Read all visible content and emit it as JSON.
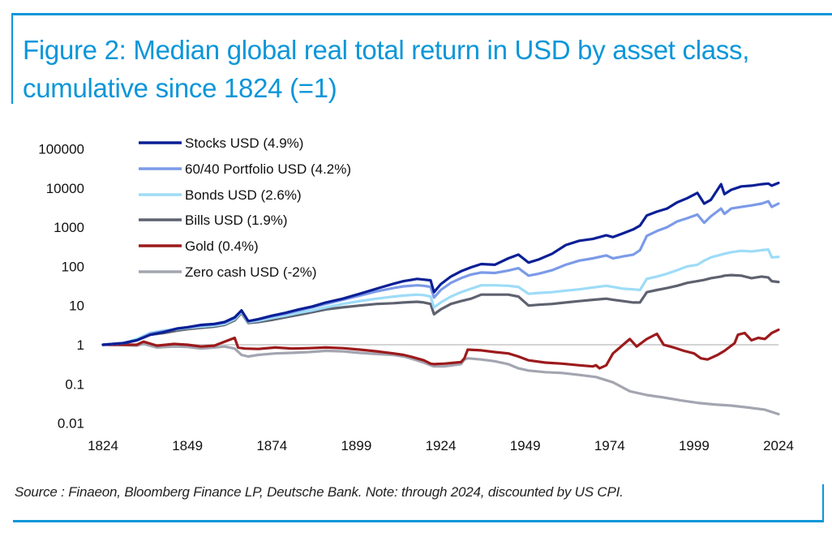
{
  "figure": {
    "title": "Figure 2: Median global real total return in USD by asset class, cumulative since 1824 (=1)",
    "source": "Source : Finaeon, Bloomberg Finance LP, Deutsche Bank. Note: through 2024, discounted by US CPI.",
    "accent_color": "#0b96d9"
  },
  "chart_data": {
    "type": "line",
    "title": "Figure 2: Median global real total return in USD by asset class, cumulative since 1824 (=1)",
    "xlabel": "",
    "ylabel": "",
    "yscale": "log",
    "xlim": [
      1824,
      2024
    ],
    "ylim": [
      0.01,
      100000
    ],
    "x_ticks": [
      "1824",
      "1849",
      "1874",
      "1899",
      "1924",
      "1949",
      "1974",
      "1999",
      "2024"
    ],
    "y_ticks": [
      "100000",
      "10000",
      "1000",
      "100",
      "10",
      "1",
      "0.1",
      "0.01"
    ],
    "y_tick_values": [
      100000,
      10000,
      1000,
      100,
      10,
      1,
      0.1,
      0.01
    ],
    "reference_line": 1,
    "grid": false,
    "legend_position": "top-left",
    "series": [
      {
        "name": "Stocks USD (4.9%)",
        "color": "#0a1f96",
        "x": [
          1824,
          1830,
          1834,
          1838,
          1842,
          1846,
          1849,
          1853,
          1857,
          1860,
          1863,
          1865,
          1867,
          1870,
          1874,
          1878,
          1882,
          1886,
          1890,
          1895,
          1900,
          1905,
          1910,
          1913,
          1917,
          1919,
          1921,
          1922,
          1924,
          1927,
          1930,
          1933,
          1936,
          1940,
          1944,
          1947,
          1950,
          1953,
          1957,
          1961,
          1965,
          1969,
          1973,
          1975,
          1978,
          1981,
          1983,
          1985,
          1988,
          1991,
          1994,
          1997,
          2000,
          2002,
          2004,
          2007,
          2008,
          2010,
          2013,
          2016,
          2019,
          2021,
          2022,
          2024
        ],
        "y": [
          1,
          1.1,
          1.3,
          1.8,
          2.1,
          2.6,
          2.8,
          3.2,
          3.4,
          3.8,
          5,
          7.5,
          4,
          4.5,
          5.5,
          6.5,
          8,
          9.5,
          12,
          15,
          20,
          27,
          36,
          42,
          48,
          46,
          44,
          22,
          35,
          55,
          75,
          95,
          115,
          110,
          160,
          200,
          125,
          150,
          210,
          350,
          450,
          500,
          620,
          560,
          700,
          880,
          1100,
          2000,
          2500,
          3000,
          4300,
          5500,
          7500,
          4000,
          5000,
          12500,
          7000,
          9000,
          11000,
          11500,
          12500,
          13000,
          11500,
          13500
        ]
      },
      {
        "name": "60/40 Portfolio USD (4.2%)",
        "color": "#7b9ae8",
        "x": [
          1824,
          1830,
          1834,
          1838,
          1842,
          1846,
          1849,
          1853,
          1857,
          1860,
          1863,
          1865,
          1867,
          1870,
          1874,
          1878,
          1882,
          1886,
          1890,
          1895,
          1900,
          1905,
          1910,
          1913,
          1917,
          1919,
          1921,
          1922,
          1924,
          1927,
          1930,
          1933,
          1936,
          1940,
          1944,
          1947,
          1950,
          1953,
          1957,
          1961,
          1965,
          1969,
          1973,
          1975,
          1978,
          1981,
          1983,
          1985,
          1988,
          1991,
          1994,
          1997,
          2000,
          2002,
          2004,
          2007,
          2008,
          2010,
          2013,
          2016,
          2019,
          2021,
          2022,
          2024
        ],
        "y": [
          1,
          1.1,
          1.3,
          1.9,
          2.2,
          2.6,
          2.8,
          3.1,
          3.3,
          3.7,
          4.8,
          7.5,
          4,
          4.4,
          5.3,
          6.2,
          7.5,
          9,
          11,
          14,
          18,
          23,
          28,
          31,
          33,
          32,
          30,
          16,
          25,
          38,
          50,
          62,
          70,
          68,
          78,
          90,
          58,
          65,
          80,
          110,
          140,
          160,
          190,
          160,
          180,
          200,
          260,
          600,
          800,
          1000,
          1400,
          1700,
          2100,
          1300,
          1900,
          3000,
          2200,
          3000,
          3300,
          3600,
          4000,
          4600,
          3300,
          4000
        ]
      },
      {
        "name": "Bonds USD (2.6%)",
        "color": "#9ddcf7",
        "x": [
          1824,
          1830,
          1834,
          1838,
          1842,
          1846,
          1849,
          1853,
          1857,
          1860,
          1863,
          1865,
          1867,
          1870,
          1874,
          1878,
          1882,
          1886,
          1890,
          1895,
          1900,
          1905,
          1910,
          1913,
          1917,
          1919,
          1921,
          1922,
          1924,
          1927,
          1930,
          1933,
          1936,
          1940,
          1944,
          1947,
          1950,
          1953,
          1957,
          1961,
          1965,
          1969,
          1973,
          1975,
          1978,
          1981,
          1983,
          1985,
          1988,
          1991,
          1994,
          1997,
          2000,
          2002,
          2004,
          2007,
          2008,
          2010,
          2013,
          2016,
          2019,
          2021,
          2022,
          2024
        ],
        "y": [
          1,
          1.1,
          1.4,
          2,
          2.3,
          2.5,
          2.7,
          2.9,
          3.1,
          3.4,
          4.5,
          7,
          3.8,
          4.1,
          4.8,
          5.5,
          6.5,
          7.5,
          9,
          11,
          13,
          15,
          17,
          18,
          19,
          18.5,
          17,
          9,
          12,
          17,
          22,
          27,
          33,
          33,
          32,
          30,
          20,
          21,
          22,
          24,
          26,
          29,
          32,
          30,
          27,
          26,
          25,
          48,
          55,
          65,
          80,
          100,
          110,
          140,
          170,
          200,
          210,
          230,
          250,
          240,
          260,
          270,
          170,
          175
        ]
      },
      {
        "name": "Bills USD (1.9%)",
        "color": "#5e6270",
        "x": [
          1824,
          1830,
          1834,
          1838,
          1842,
          1846,
          1849,
          1853,
          1857,
          1860,
          1863,
          1865,
          1867,
          1870,
          1874,
          1878,
          1882,
          1886,
          1890,
          1895,
          1900,
          1905,
          1910,
          1913,
          1917,
          1919,
          1921,
          1922,
          1924,
          1927,
          1930,
          1933,
          1936,
          1940,
          1944,
          1947,
          1950,
          1953,
          1957,
          1961,
          1965,
          1969,
          1973,
          1975,
          1978,
          1981,
          1983,
          1985,
          1988,
          1991,
          1994,
          1997,
          2000,
          2002,
          2004,
          2007,
          2008,
          2010,
          2013,
          2016,
          2019,
          2021,
          2022,
          2024
        ],
        "y": [
          1,
          1.1,
          1.3,
          1.8,
          2,
          2.3,
          2.5,
          2.7,
          2.9,
          3.2,
          4.2,
          6.5,
          3.6,
          3.8,
          4.3,
          5,
          5.8,
          6.8,
          8,
          9,
          10,
          11,
          11.5,
          12,
          12.5,
          12,
          11,
          6,
          8,
          11,
          13,
          15,
          19,
          19,
          19,
          17,
          10,
          10.5,
          11,
          12,
          13,
          14,
          15,
          14,
          13,
          12,
          12,
          22,
          25,
          28,
          32,
          38,
          42,
          45,
          50,
          55,
          58,
          60,
          58,
          50,
          55,
          52,
          42,
          40
        ]
      },
      {
        "name": "Gold (0.4%)",
        "color": "#9c1a1c",
        "x": [
          1824,
          1830,
          1834,
          1836,
          1840,
          1845,
          1849,
          1853,
          1857,
          1860,
          1863,
          1864,
          1866,
          1870,
          1875,
          1880,
          1885,
          1890,
          1895,
          1900,
          1905,
          1910,
          1913,
          1915,
          1919,
          1921,
          1922,
          1925,
          1930,
          1931,
          1932,
          1936,
          1940,
          1944,
          1947,
          1950,
          1955,
          1960,
          1965,
          1969,
          1970,
          1971,
          1973,
          1975,
          1978,
          1980,
          1982,
          1985,
          1988,
          1990,
          1993,
          1996,
          1999,
          2001,
          2003,
          2006,
          2008,
          2011,
          2012,
          2014,
          2016,
          2018,
          2020,
          2022,
          2024
        ],
        "y": [
          1,
          1,
          1,
          1.2,
          0.95,
          1.05,
          1,
          0.9,
          0.95,
          1.2,
          1.5,
          0.85,
          0.8,
          0.78,
          0.85,
          0.8,
          0.82,
          0.85,
          0.82,
          0.75,
          0.68,
          0.6,
          0.55,
          0.5,
          0.4,
          0.33,
          0.32,
          0.33,
          0.36,
          0.45,
          0.75,
          0.72,
          0.65,
          0.6,
          0.5,
          0.4,
          0.35,
          0.33,
          0.3,
          0.28,
          0.3,
          0.25,
          0.3,
          0.6,
          1,
          1.4,
          0.9,
          1.4,
          1.9,
          1,
          0.85,
          0.7,
          0.6,
          0.45,
          0.42,
          0.55,
          0.7,
          1.1,
          1.8,
          2,
          1.3,
          1.5,
          1.4,
          2,
          2.4
        ]
      },
      {
        "name": "Zero cash USD (-2%)",
        "color": "#a3a5b0",
        "x": [
          1824,
          1830,
          1834,
          1836,
          1840,
          1845,
          1849,
          1853,
          1857,
          1860,
          1863,
          1865,
          1867,
          1870,
          1875,
          1880,
          1885,
          1890,
          1895,
          1900,
          1905,
          1910,
          1913,
          1915,
          1919,
          1921,
          1922,
          1925,
          1930,
          1931,
          1932,
          1936,
          1940,
          1944,
          1947,
          1950,
          1955,
          1960,
          1965,
          1970,
          1975,
          1980,
          1985,
          1990,
          1995,
          2000,
          2005,
          2010,
          2015,
          2020,
          2024
        ],
        "y": [
          1,
          0.98,
          0.95,
          1.05,
          0.85,
          0.9,
          0.88,
          0.8,
          0.85,
          0.9,
          0.8,
          0.55,
          0.5,
          0.55,
          0.6,
          0.62,
          0.65,
          0.7,
          0.68,
          0.62,
          0.58,
          0.55,
          0.5,
          0.45,
          0.35,
          0.3,
          0.28,
          0.28,
          0.32,
          0.42,
          0.45,
          0.42,
          0.38,
          0.32,
          0.25,
          0.22,
          0.2,
          0.19,
          0.17,
          0.15,
          0.11,
          0.065,
          0.052,
          0.045,
          0.038,
          0.033,
          0.03,
          0.028,
          0.025,
          0.022,
          0.017
        ]
      }
    ]
  }
}
